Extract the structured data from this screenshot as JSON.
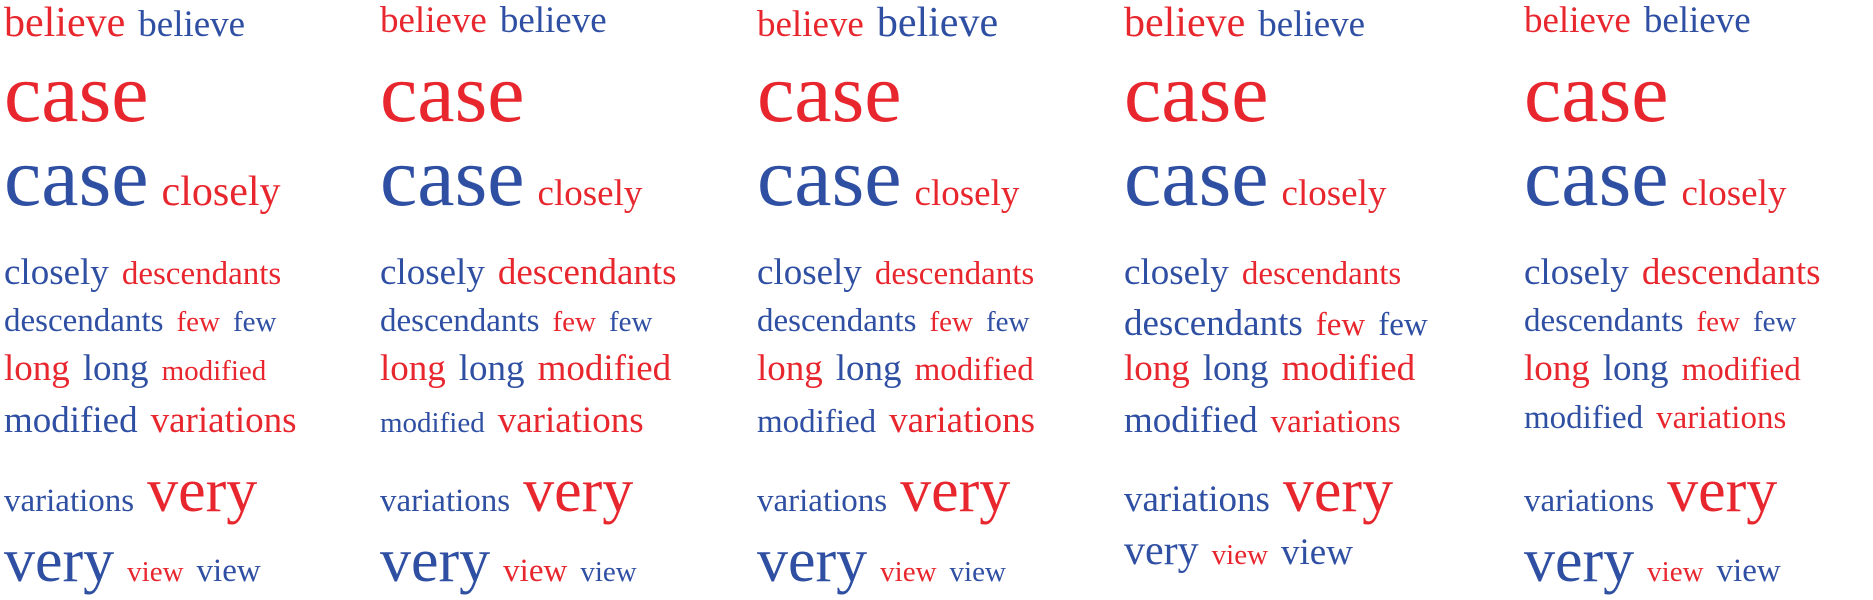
{
  "colors": {
    "red": "#e8262e",
    "blue": "#2f4fa3"
  },
  "clouds": [
    {
      "lines": [
        [
          {
            "text": "believe",
            "color": "red",
            "size": "xl"
          },
          {
            "text": "believe",
            "color": "blue",
            "size": "l"
          }
        ],
        [
          {
            "text": "case",
            "color": "red",
            "size": "xxxl"
          }
        ],
        [
          {
            "text": "case",
            "color": "blue",
            "size": "xxxl"
          },
          {
            "text": "closely",
            "color": "red",
            "size": "xl"
          }
        ],
        [
          {
            "text": "closely",
            "color": "blue",
            "size": "l"
          },
          {
            "text": "descendants",
            "color": "red",
            "size": "m"
          }
        ],
        [
          {
            "text": "descendants",
            "color": "blue",
            "size": "m"
          },
          {
            "text": "few",
            "color": "red",
            "size": "s"
          },
          {
            "text": "few",
            "color": "blue",
            "size": "s"
          }
        ],
        [
          {
            "text": "long",
            "color": "red",
            "size": "l"
          },
          {
            "text": "long",
            "color": "blue",
            "size": "l"
          },
          {
            "text": "modified",
            "color": "red",
            "size": "s"
          }
        ],
        [
          {
            "text": "modified",
            "color": "blue",
            "size": "l"
          },
          {
            "text": "variations",
            "color": "red",
            "size": "l"
          }
        ],
        [
          {
            "text": "variations",
            "color": "blue",
            "size": "m"
          },
          {
            "text": "very",
            "color": "red",
            "size": "xxl"
          }
        ],
        [
          {
            "text": "very",
            "color": "blue",
            "size": "xxl"
          },
          {
            "text": "view",
            "color": "red",
            "size": "s"
          },
          {
            "text": "view",
            "color": "blue",
            "size": "m"
          }
        ]
      ]
    },
    {
      "lines": [
        [
          {
            "text": "believe",
            "color": "red",
            "size": "l"
          },
          {
            "text": "believe",
            "color": "blue",
            "size": "l"
          }
        ],
        [
          {
            "text": "case",
            "color": "red",
            "size": "xxxl"
          }
        ],
        [
          {
            "text": "case",
            "color": "blue",
            "size": "xxxl"
          },
          {
            "text": "closely",
            "color": "red",
            "size": "l"
          }
        ],
        [
          {
            "text": "closely",
            "color": "blue",
            "size": "l"
          },
          {
            "text": "descendants",
            "color": "red",
            "size": "l"
          }
        ],
        [
          {
            "text": "descendants",
            "color": "blue",
            "size": "m"
          },
          {
            "text": "few",
            "color": "red",
            "size": "s"
          },
          {
            "text": "few",
            "color": "blue",
            "size": "s"
          }
        ],
        [
          {
            "text": "long",
            "color": "red",
            "size": "l"
          },
          {
            "text": "long",
            "color": "blue",
            "size": "l"
          },
          {
            "text": "modified",
            "color": "red",
            "size": "l"
          }
        ],
        [
          {
            "text": "modified",
            "color": "blue",
            "size": "s"
          },
          {
            "text": "variations",
            "color": "red",
            "size": "l"
          }
        ],
        [
          {
            "text": "variations",
            "color": "blue",
            "size": "m"
          },
          {
            "text": "very",
            "color": "red",
            "size": "xxl"
          }
        ],
        [
          {
            "text": "very",
            "color": "blue",
            "size": "xxl"
          },
          {
            "text": "view",
            "color": "red",
            "size": "m"
          },
          {
            "text": "view",
            "color": "blue",
            "size": "s"
          }
        ]
      ]
    },
    {
      "lines": [
        [
          {
            "text": "believe",
            "color": "red",
            "size": "l"
          },
          {
            "text": "believe",
            "color": "blue",
            "size": "xl"
          }
        ],
        [
          {
            "text": "case",
            "color": "red",
            "size": "xxxl"
          }
        ],
        [
          {
            "text": "case",
            "color": "blue",
            "size": "xxxl"
          },
          {
            "text": "closely",
            "color": "red",
            "size": "l"
          }
        ],
        [
          {
            "text": "closely",
            "color": "blue",
            "size": "l"
          },
          {
            "text": "descendants",
            "color": "red",
            "size": "m"
          }
        ],
        [
          {
            "text": "descendants",
            "color": "blue",
            "size": "m"
          },
          {
            "text": "few",
            "color": "red",
            "size": "s"
          },
          {
            "text": "few",
            "color": "blue",
            "size": "s"
          }
        ],
        [
          {
            "text": "long",
            "color": "red",
            "size": "l"
          },
          {
            "text": "long",
            "color": "blue",
            "size": "l"
          },
          {
            "text": "modified",
            "color": "red",
            "size": "m"
          }
        ],
        [
          {
            "text": "modified",
            "color": "blue",
            "size": "m"
          },
          {
            "text": "variations",
            "color": "red",
            "size": "l"
          }
        ],
        [
          {
            "text": "variations",
            "color": "blue",
            "size": "m"
          },
          {
            "text": "very",
            "color": "red",
            "size": "xxl"
          }
        ],
        [
          {
            "text": "very",
            "color": "blue",
            "size": "xxl"
          },
          {
            "text": "view",
            "color": "red",
            "size": "s"
          },
          {
            "text": "view",
            "color": "blue",
            "size": "s"
          }
        ]
      ]
    },
    {
      "lines": [
        [
          {
            "text": "believe",
            "color": "red",
            "size": "xl"
          },
          {
            "text": "believe",
            "color": "blue",
            "size": "l"
          }
        ],
        [
          {
            "text": "case",
            "color": "red",
            "size": "xxxl"
          }
        ],
        [
          {
            "text": "case",
            "color": "blue",
            "size": "xxxl"
          },
          {
            "text": "closely",
            "color": "red",
            "size": "l"
          }
        ],
        [
          {
            "text": "closely",
            "color": "blue",
            "size": "l"
          },
          {
            "text": "descendants",
            "color": "red",
            "size": "m"
          }
        ],
        [
          {
            "text": "descendants",
            "color": "blue",
            "size": "l"
          },
          {
            "text": "few",
            "color": "red",
            "size": "m"
          },
          {
            "text": "few",
            "color": "blue",
            "size": "m"
          }
        ],
        [
          {
            "text": "long",
            "color": "red",
            "size": "l"
          },
          {
            "text": "long",
            "color": "blue",
            "size": "l"
          },
          {
            "text": "modified",
            "color": "red",
            "size": "l"
          }
        ],
        [
          {
            "text": "modified",
            "color": "blue",
            "size": "l"
          },
          {
            "text": "variations",
            "color": "red",
            "size": "m"
          }
        ],
        [
          {
            "text": "variations",
            "color": "blue",
            "size": "l"
          },
          {
            "text": "very",
            "color": "red",
            "size": "xxl"
          }
        ],
        [
          {
            "text": "very",
            "color": "blue",
            "size": "xl"
          },
          {
            "text": "view",
            "color": "red",
            "size": "s"
          },
          {
            "text": "view",
            "color": "blue",
            "size": "l"
          }
        ]
      ]
    },
    {
      "lines": [
        [
          {
            "text": "believe",
            "color": "red",
            "size": "l"
          },
          {
            "text": "believe",
            "color": "blue",
            "size": "l"
          }
        ],
        [
          {
            "text": "case",
            "color": "red",
            "size": "xxxl"
          }
        ],
        [
          {
            "text": "case",
            "color": "blue",
            "size": "xxxl"
          },
          {
            "text": "closely",
            "color": "red",
            "size": "l"
          }
        ],
        [
          {
            "text": "closely",
            "color": "blue",
            "size": "l"
          },
          {
            "text": "descendants",
            "color": "red",
            "size": "l"
          }
        ],
        [
          {
            "text": "descendants",
            "color": "blue",
            "size": "m"
          },
          {
            "text": "few",
            "color": "red",
            "size": "s"
          },
          {
            "text": "few",
            "color": "blue",
            "size": "s"
          }
        ],
        [
          {
            "text": "long",
            "color": "red",
            "size": "l"
          },
          {
            "text": "long",
            "color": "blue",
            "size": "l"
          },
          {
            "text": "modified",
            "color": "red",
            "size": "m"
          }
        ],
        [
          {
            "text": "modified",
            "color": "blue",
            "size": "m"
          },
          {
            "text": "variations",
            "color": "red",
            "size": "m"
          }
        ],
        [
          {
            "text": "variations",
            "color": "blue",
            "size": "m"
          },
          {
            "text": "very",
            "color": "red",
            "size": "xxl"
          }
        ],
        [
          {
            "text": "very",
            "color": "blue",
            "size": "xxl"
          },
          {
            "text": "view",
            "color": "red",
            "size": "s"
          },
          {
            "text": "view",
            "color": "blue",
            "size": "m"
          }
        ]
      ]
    }
  ]
}
